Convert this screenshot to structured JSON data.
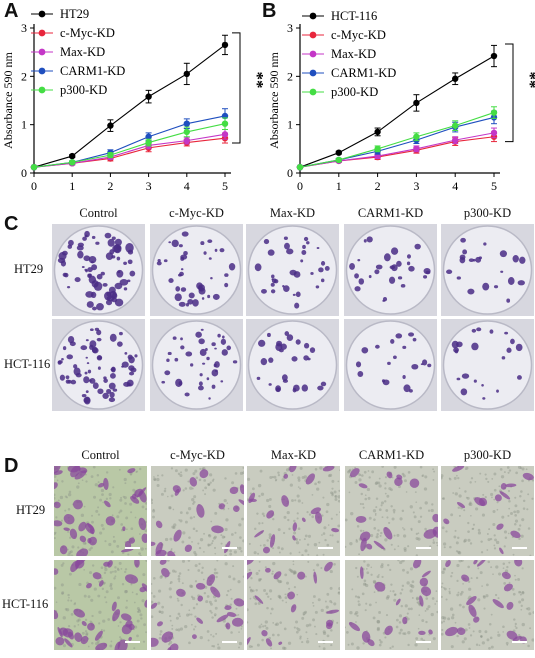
{
  "panels": {
    "a": "A",
    "b": "B",
    "c": "C",
    "d": "D"
  },
  "colors": {
    "HT29": "#000000",
    "HCT-116": "#000000",
    "c-Myc-KD": "#e8263c",
    "Max-KD": "#c436c7",
    "CARM1-KD": "#1f4fbf",
    "p300-KD": "#44dd44",
    "stain": "#4a2d86",
    "dish_bg": "#ececf2",
    "cell_bg": "#c9d0ba"
  },
  "chart_data": [
    {
      "type": "line",
      "ylabel": "Absorbance 590 nm",
      "x": [
        0,
        1,
        2,
        3,
        4,
        5
      ],
      "xticks": [
        "0",
        "1",
        "2",
        "3",
        "4",
        "5"
      ],
      "yticks": [
        "0",
        "1",
        "2",
        "3"
      ],
      "ylim": [
        0,
        3
      ],
      "significance": "**",
      "series": [
        {
          "name": "HT29",
          "values": [
            0.12,
            0.35,
            0.98,
            1.58,
            2.05,
            2.65
          ],
          "err": [
            0.02,
            0.03,
            0.12,
            0.13,
            0.22,
            0.2
          ]
        },
        {
          "name": "c-Myc-KD",
          "values": [
            0.12,
            0.2,
            0.3,
            0.52,
            0.63,
            0.72
          ],
          "err": [
            0.02,
            0.03,
            0.05,
            0.08,
            0.07,
            0.1
          ]
        },
        {
          "name": "Max-KD",
          "values": [
            0.12,
            0.2,
            0.33,
            0.57,
            0.67,
            0.8
          ],
          "err": [
            0.02,
            0.03,
            0.05,
            0.07,
            0.07,
            0.1
          ]
        },
        {
          "name": "CARM1-KD",
          "values": [
            0.12,
            0.22,
            0.42,
            0.75,
            1.02,
            1.18
          ],
          "err": [
            0.02,
            0.03,
            0.06,
            0.08,
            0.1,
            0.15
          ]
        },
        {
          "name": "p300-KD",
          "values": [
            0.12,
            0.22,
            0.37,
            0.63,
            0.85,
            1.02
          ],
          "err": [
            0.02,
            0.03,
            0.05,
            0.07,
            0.1,
            0.12
          ]
        }
      ]
    },
    {
      "type": "line",
      "ylabel": "Absorbance 590 nm",
      "x": [
        0,
        1,
        2,
        3,
        4,
        5
      ],
      "xticks": [
        "0",
        "1",
        "2",
        "3",
        "4",
        "5"
      ],
      "yticks": [
        "0",
        "1",
        "2",
        "3"
      ],
      "ylim": [
        0,
        3
      ],
      "significance": "**",
      "series": [
        {
          "name": "HCT-116",
          "values": [
            0.12,
            0.42,
            0.85,
            1.45,
            1.95,
            2.42
          ],
          "err": [
            0.02,
            0.03,
            0.08,
            0.17,
            0.12,
            0.22
          ]
        },
        {
          "name": "c-Myc-KD",
          "values": [
            0.12,
            0.25,
            0.33,
            0.47,
            0.65,
            0.75
          ],
          "err": [
            0.02,
            0.03,
            0.05,
            0.06,
            0.08,
            0.1
          ]
        },
        {
          "name": "Max-KD",
          "values": [
            0.12,
            0.25,
            0.35,
            0.5,
            0.68,
            0.83
          ],
          "err": [
            0.02,
            0.03,
            0.05,
            0.06,
            0.07,
            0.1
          ]
        },
        {
          "name": "CARM1-KD",
          "values": [
            0.12,
            0.27,
            0.45,
            0.68,
            0.95,
            1.15
          ],
          "err": [
            0.02,
            0.03,
            0.06,
            0.07,
            0.1,
            0.13
          ]
        },
        {
          "name": "p300-KD",
          "values": [
            0.12,
            0.27,
            0.5,
            0.75,
            0.98,
            1.25
          ],
          "err": [
            0.02,
            0.03,
            0.06,
            0.08,
            0.1,
            0.12
          ]
        }
      ]
    }
  ],
  "figure_c": {
    "columns": [
      "Control",
      "c-Myc-KD",
      "Max-KD",
      "CARM1-KD",
      "p300-KD"
    ],
    "rows": [
      "HT29",
      "HCT-116"
    ],
    "colony_density": [
      [
        1.0,
        0.55,
        0.45,
        0.38,
        0.3
      ],
      [
        1.0,
        0.55,
        0.4,
        0.28,
        0.3
      ]
    ]
  },
  "figure_d": {
    "columns": [
      "Control",
      "c-Myc-KD",
      "Max-KD",
      "CARM1-KD",
      "p300-KD"
    ],
    "rows": [
      "HT29",
      "HCT-116"
    ],
    "invasion_density": [
      [
        1.0,
        0.5,
        0.45,
        0.4,
        0.35
      ],
      [
        1.0,
        0.55,
        0.45,
        0.4,
        0.45
      ]
    ]
  }
}
